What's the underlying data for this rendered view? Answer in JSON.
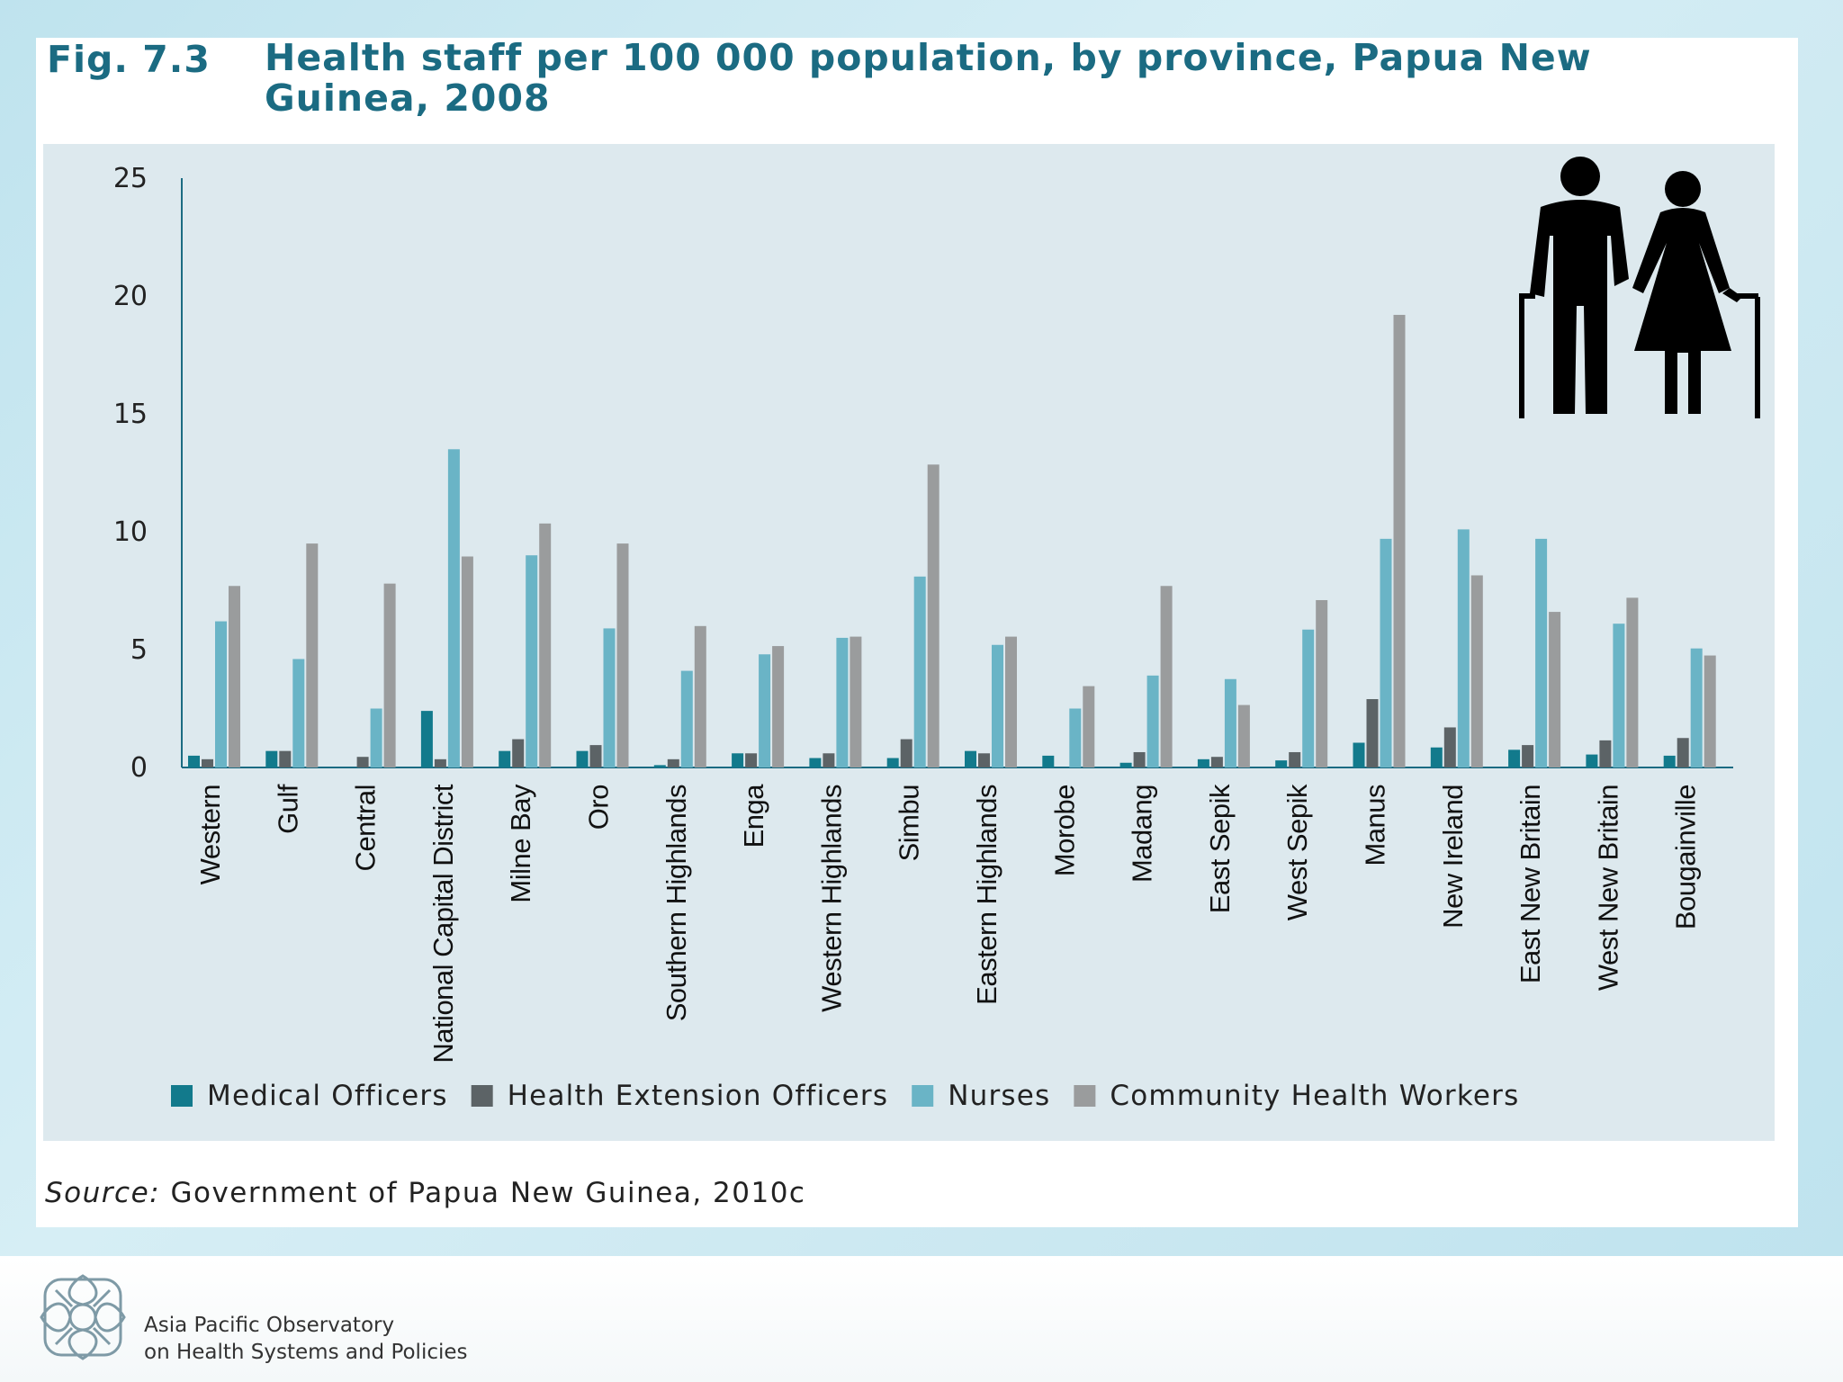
{
  "figure": {
    "label": "Fig. 7.3",
    "title": "Health staff per 100 000 population, by province, Papua New Guinea, 2008"
  },
  "source": {
    "prefix": "Source:",
    "text": "Government of Papua New Guinea, 2010c"
  },
  "footer": {
    "org_line1": "Asia Pacific Observatory",
    "org_line2": "on Health Systems and Policies",
    "logo_icon": "observatory-logo-icon"
  },
  "decoration": {
    "icon": "elderly-couple-icon"
  },
  "chart_data": {
    "type": "bar",
    "title": "",
    "xlabel": "",
    "ylabel": "",
    "ylim": [
      0,
      25
    ],
    "yticks": [
      0,
      5,
      10,
      15,
      20,
      25
    ],
    "grid": false,
    "legend_position": "bottom",
    "categories": [
      "Western",
      "Gulf",
      "Central",
      "National Capital District",
      "Milne Bay",
      "Oro",
      "Southern Highlands",
      "Enga",
      "Western Highlands",
      "Simbu",
      "Eastern Highlands",
      "Morobe",
      "Madang",
      "East Sepik",
      "West Sepik",
      "Manus",
      "New Ireland",
      "East New Britain",
      "West New Britain",
      "Bougainville"
    ],
    "series": [
      {
        "name": "Medical Officers",
        "color": "#127a8c",
        "values": [
          0.5,
          0.7,
          0.0,
          2.4,
          0.7,
          0.7,
          0.1,
          0.6,
          0.4,
          0.4,
          0.7,
          0.5,
          0.2,
          0.35,
          0.3,
          1.05,
          0.85,
          0.75,
          0.55,
          0.5
        ]
      },
      {
        "name": "Health Extension Officers",
        "color": "#5c6366",
        "values": [
          0.35,
          0.7,
          0.45,
          0.35,
          1.2,
          0.95,
          0.35,
          0.6,
          0.6,
          1.2,
          0.6,
          0.0,
          0.65,
          0.45,
          0.65,
          2.9,
          1.7,
          0.95,
          1.15,
          1.25
        ]
      },
      {
        "name": "Nurses",
        "color": "#6ab4c6",
        "values": [
          6.2,
          4.6,
          2.5,
          13.5,
          9.0,
          5.9,
          4.1,
          4.8,
          5.5,
          8.1,
          5.2,
          2.5,
          3.9,
          3.75,
          5.85,
          9.7,
          10.1,
          9.7,
          6.1,
          5.05
        ]
      },
      {
        "name": "Community Health Workers",
        "color": "#9a9c9d",
        "values": [
          7.7,
          9.5,
          7.8,
          8.95,
          10.35,
          9.5,
          6.0,
          5.15,
          5.55,
          12.85,
          5.55,
          3.45,
          7.7,
          2.65,
          7.1,
          19.2,
          8.15,
          6.6,
          7.2,
          4.75
        ]
      }
    ]
  }
}
